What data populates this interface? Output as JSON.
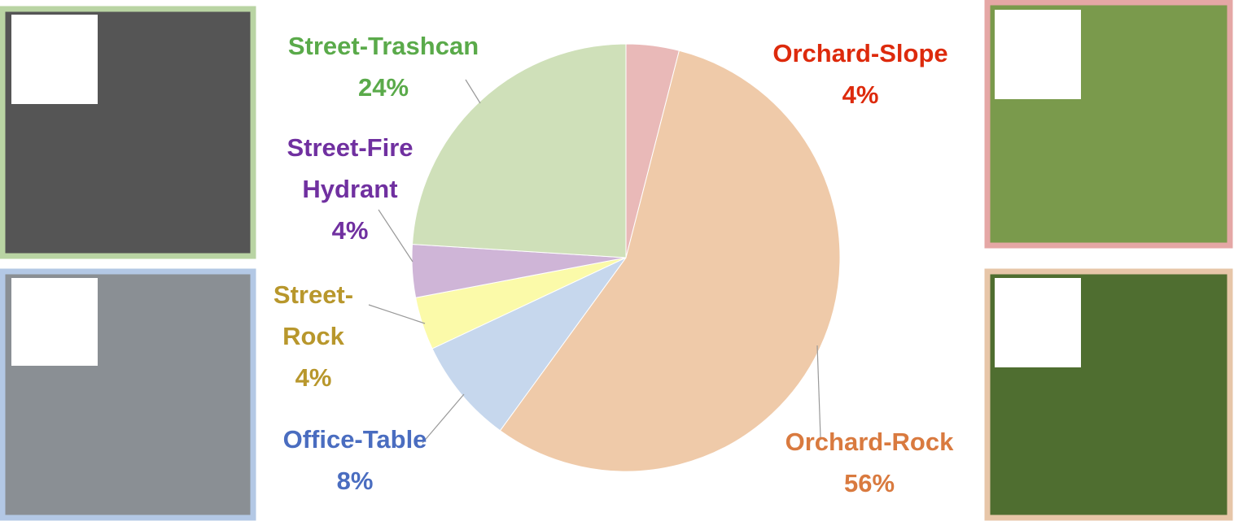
{
  "chart_data": {
    "type": "pie",
    "categories": [
      "Orchard-Slope",
      "Orchard-Rock",
      "Office-Table",
      "Street-Rock",
      "Street-Fire Hydrant",
      "Street-Trashcan"
    ],
    "values": [
      4,
      56,
      8,
      4,
      4,
      24
    ],
    "value_labels": [
      "4%",
      "56%",
      "8%",
      "4%",
      "4%",
      "24%"
    ],
    "colors": [
      "#e9b9b8",
      "#efcaa9",
      "#c6d7ed",
      "#fbfaa9",
      "#cfb5d7",
      "#cfe0b9"
    ]
  }
}
